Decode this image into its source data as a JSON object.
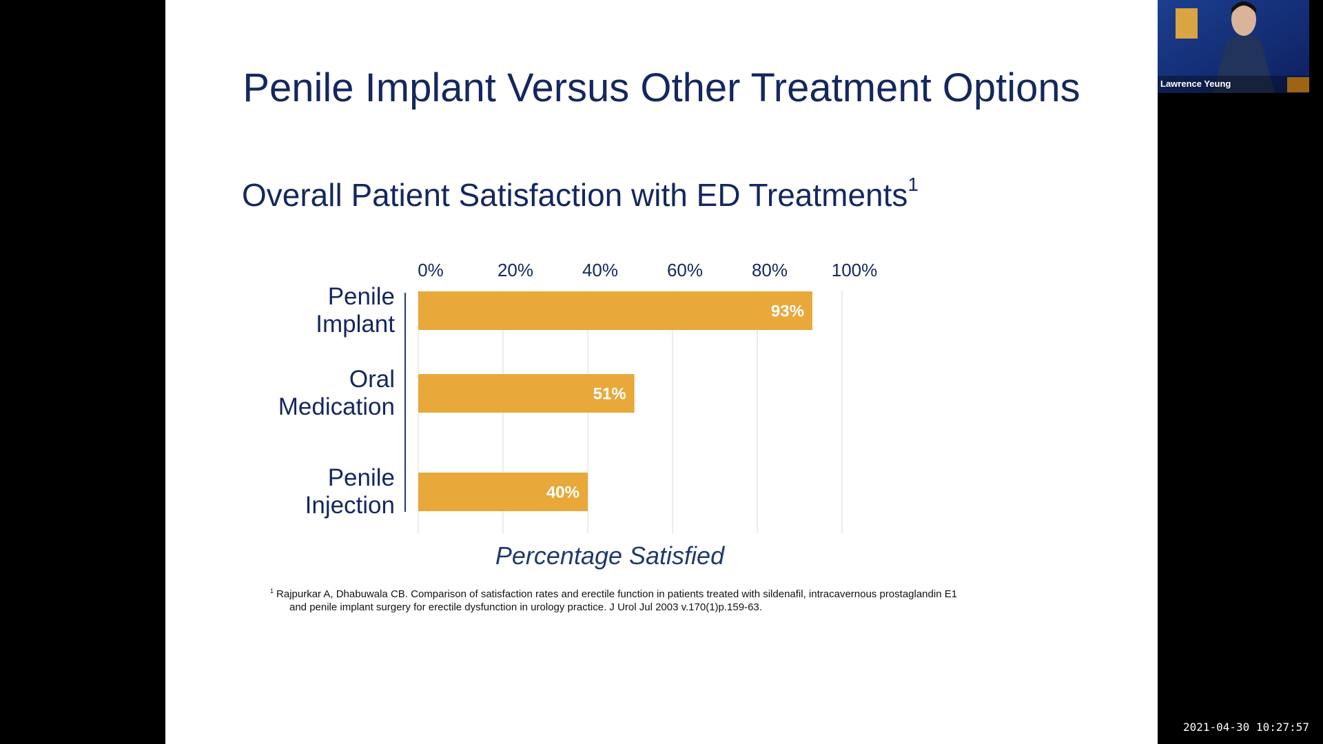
{
  "slide": {
    "title": "Penile Implant Versus Other Treatment Options",
    "subtitle": "Overall Patient Satisfaction with ED Treatments",
    "subtitle_marker": "1",
    "footnote": {
      "marker": "1",
      "lines": [
        "Rajpurkar A, Dhabuwala CB. Comparison of satisfaction rates and erectile function in patients treated with sildenafil, intracavernous prostaglandin E1",
        "and penile implant surgery for erectile dysfunction in urology practice. J Urol Jul 2003 v.170(1)p.159-63."
      ]
    }
  },
  "chart_data": {
    "type": "bar",
    "orientation": "horizontal",
    "categories": [
      "Penile Implant",
      "Oral Medication",
      "Penile Injection"
    ],
    "values": [
      93,
      51,
      40
    ],
    "value_labels": [
      "93%",
      "51%",
      "40%"
    ],
    "color": "#e8a83a",
    "xlim": [
      0,
      100
    ],
    "xticks": [
      {
        "value": 0,
        "label": "0%"
      },
      {
        "value": 20,
        "label": "20%"
      },
      {
        "value": 40,
        "label": "40%"
      },
      {
        "value": 60,
        "label": "60%"
      },
      {
        "value": 80,
        "label": "80%"
      },
      {
        "value": 100,
        "label": "100%"
      }
    ],
    "x_label": "Percentage Satisfied",
    "grid": true
  },
  "video": {
    "participant": "Lawrence Yeung"
  },
  "timestamp": "2021-04-30 10:27:57"
}
